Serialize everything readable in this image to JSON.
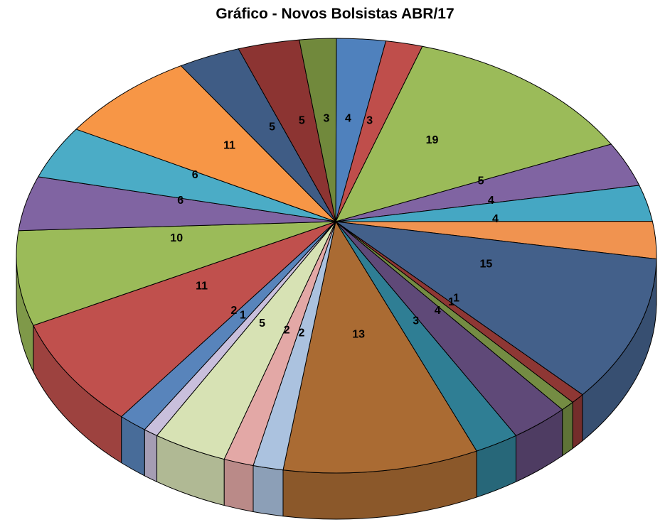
{
  "page": {
    "background": "#FFFFFF"
  },
  "chart_data": {
    "type": "pie",
    "variant": "3d-perspective",
    "title": "Gráfico - Novos Bolsistas ABR/17",
    "title_color": "#000000",
    "direction": "clockwise",
    "start_angle_deg": 0,
    "legend_position": "none",
    "grid": "off",
    "background_color": "#FFFFFF",
    "outline_color": "#000000",
    "label_color": "#000000",
    "side_shade": 0.82,
    "total": 145,
    "slices": [
      {
        "label": "4",
        "value": 4,
        "color": "#4F81BD"
      },
      {
        "label": "3",
        "value": 3,
        "color": "#BF4E4B"
      },
      {
        "label": "19",
        "value": 19,
        "color": "#9BBB59"
      },
      {
        "label": "5",
        "value": 5,
        "color": "#8064A2"
      },
      {
        "label": "4",
        "value": 4,
        "color": "#45A7C3"
      },
      {
        "label": "4",
        "value": 4,
        "color": "#F09350"
      },
      {
        "label": "15",
        "value": 15,
        "color": "#43608A"
      },
      {
        "label": "1",
        "value": 1,
        "color": "#8E3734"
      },
      {
        "label": "1",
        "value": 1,
        "color": "#748C43"
      },
      {
        "label": "4",
        "value": 4,
        "color": "#5F4978"
      },
      {
        "label": "3",
        "value": 3,
        "color": "#2F7E94"
      },
      {
        "label": "13",
        "value": 13,
        "color": "#AA6B33"
      },
      {
        "label": "2",
        "value": 2,
        "color": "#ABC2DF"
      },
      {
        "label": "2",
        "value": 2,
        "color": "#E3A8A6"
      },
      {
        "label": "5",
        "value": 5,
        "color": "#D7E2B4"
      },
      {
        "label": "1",
        "value": 1,
        "color": "#C9BFDC"
      },
      {
        "label": "2",
        "value": 2,
        "color": "#5884BB"
      },
      {
        "label": "11",
        "value": 11,
        "color": "#C0504D"
      },
      {
        "label": "10",
        "value": 10,
        "color": "#9BBB59"
      },
      {
        "label": "6",
        "value": 6,
        "color": "#8064A2"
      },
      {
        "label": "6",
        "value": 6,
        "color": "#4BACC6"
      },
      {
        "label": "11",
        "value": 11,
        "color": "#F79646"
      },
      {
        "label": "5",
        "value": 5,
        "color": "#3F5C85"
      },
      {
        "label": "5",
        "value": 5,
        "color": "#8C3432"
      },
      {
        "label": "3",
        "value": 3,
        "color": "#71893C"
      }
    ]
  }
}
